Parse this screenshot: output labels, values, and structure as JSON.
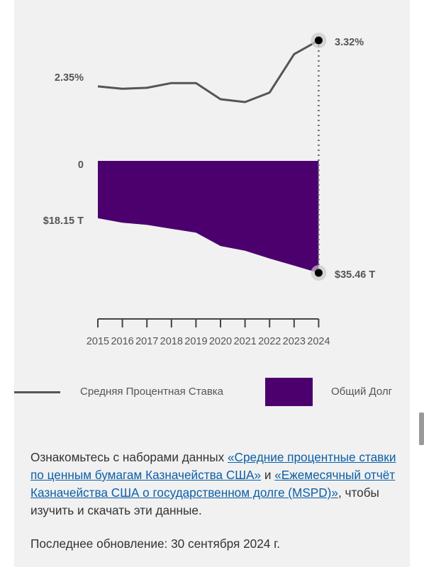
{
  "chart_data": {
    "type": "line+area",
    "x": [
      2015,
      2016,
      2017,
      2018,
      2019,
      2020,
      2021,
      2022,
      2023,
      2024
    ],
    "series": [
      {
        "name": "Средняя Процентная Ставка",
        "kind": "line",
        "unit": "%",
        "values": [
          2.35,
          2.3,
          2.32,
          2.42,
          2.42,
          2.08,
          2.02,
          2.22,
          3.03,
          3.32
        ]
      },
      {
        "name": "Общий Долг",
        "kind": "area",
        "unit": "T",
        "values": [
          18.15,
          19.57,
          20.24,
          21.52,
          22.72,
          26.95,
          28.43,
          30.93,
          33.17,
          35.46
        ]
      }
    ],
    "tick_labels": [
      "2015",
      "2016",
      "2017",
      "2018",
      "2019",
      "2020",
      "2021",
      "2022",
      "2023",
      "2024"
    ],
    "annotations": {
      "rate_start": "2.35%",
      "rate_end": "3.32%",
      "debt_zero": "0",
      "debt_start": "$18.15 T",
      "debt_end": "$35.46 T"
    },
    "colors": {
      "rate_line": "#555555",
      "debt_area": "#4b006e",
      "marker": "#000000"
    },
    "grid": false,
    "legend_position": "bottom"
  },
  "legend": {
    "rate_label": "Средняя Процентная Ставка",
    "debt_label": "Общий Долг"
  },
  "notes": {
    "prefix": "Ознакомьтесь с наборами данных ",
    "link1": "«Средние процентные ставки по ценным бумагам Казначейства США»",
    "middle": " и ",
    "link2": "«Ежемесячный отчёт Казначейства США о государственном долге (MSPD)»",
    "suffix": ", чтобы изучить и скачать эти данные.",
    "updated": "Последнее обновление: 30 сентября 2024 г."
  }
}
